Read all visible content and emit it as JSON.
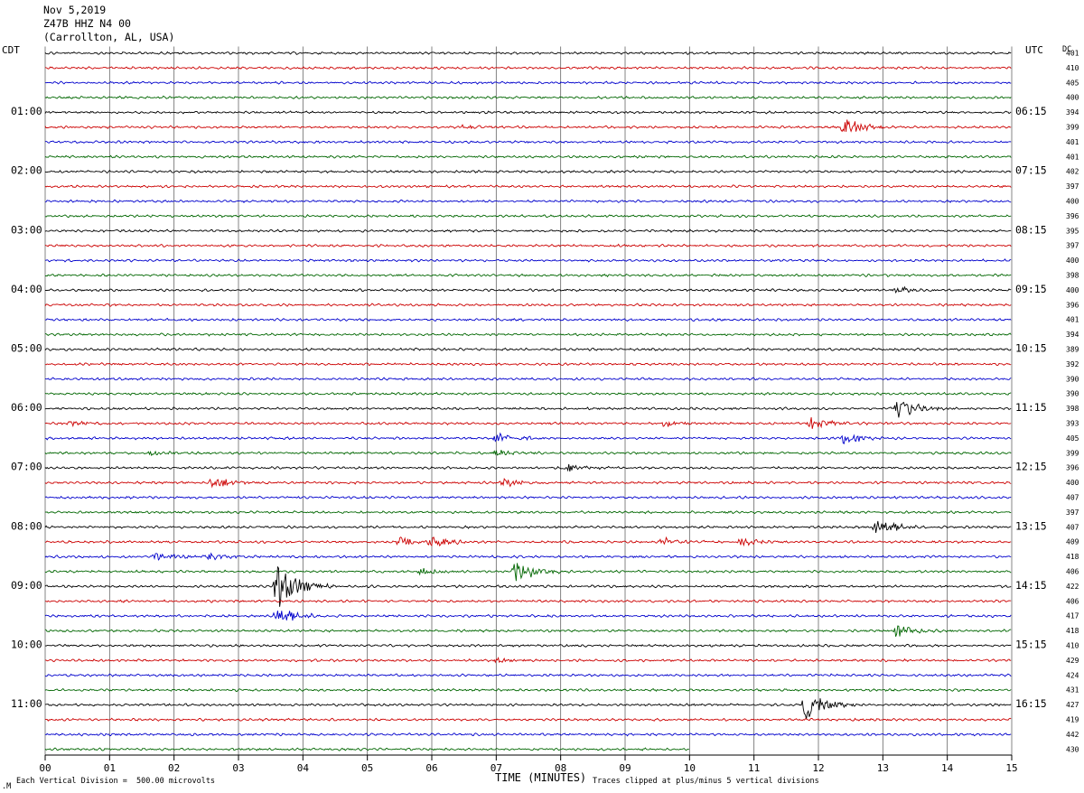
{
  "header": {
    "date": "Nov 5,2019",
    "station": "Z47B HHZ N4 00",
    "location": "(Carrollton, AL, USA)"
  },
  "left_zone": "CDT",
  "right_zone": "UTC",
  "dc_label": "DC",
  "footer": {
    "scale_note": "Each Vertical Division =  500.00 microvolts",
    "xlabel": "TIME (MINUTES)",
    "clip_note": "Traces clipped at plus/minus 5 vertical divisions",
    "corner_mark": ".M"
  },
  "colors": {
    "cycle": [
      "#000000",
      "#cc0000",
      "#0000cc",
      "#006600"
    ],
    "grid": "#666666"
  },
  "chart_data": {
    "type": "line",
    "subtype": "helicorder",
    "x_ticks": [
      "00",
      "01",
      "02",
      "03",
      "04",
      "05",
      "06",
      "07",
      "08",
      "09",
      "10",
      "11",
      "12",
      "13",
      "14",
      "15"
    ],
    "xlim": [
      0,
      15
    ],
    "left_hour_labels": [
      {
        "row": 4,
        "text": "01:00"
      },
      {
        "row": 8,
        "text": "02:00"
      },
      {
        "row": 12,
        "text": "03:00"
      },
      {
        "row": 16,
        "text": "04:00"
      },
      {
        "row": 20,
        "text": "05:00"
      },
      {
        "row": 24,
        "text": "06:00"
      },
      {
        "row": 28,
        "text": "07:00"
      },
      {
        "row": 32,
        "text": "08:00"
      },
      {
        "row": 36,
        "text": "09:00"
      },
      {
        "row": 40,
        "text": "10:00"
      },
      {
        "row": 44,
        "text": "11:00"
      }
    ],
    "right_hour_labels": [
      {
        "row": 4,
        "text": "06:15"
      },
      {
        "row": 8,
        "text": "07:15"
      },
      {
        "row": 12,
        "text": "08:15"
      },
      {
        "row": 16,
        "text": "09:15"
      },
      {
        "row": 20,
        "text": "10:15"
      },
      {
        "row": 24,
        "text": "11:15"
      },
      {
        "row": 28,
        "text": "12:15"
      },
      {
        "row": 32,
        "text": "13:15"
      },
      {
        "row": 36,
        "text": "14:15"
      },
      {
        "row": 40,
        "text": "15:15"
      },
      {
        "row": 44,
        "text": "16:15"
      }
    ],
    "dc_offsets": [
      "401",
      "410",
      "405",
      "400",
      "394",
      "399",
      "401",
      "401",
      "402",
      "397",
      "400",
      "396",
      "395",
      "397",
      "400",
      "398",
      "400",
      "396",
      "401",
      "394",
      "389",
      "392",
      "390",
      "390",
      "398",
      "393",
      "405",
      "399",
      "396",
      "400",
      "407",
      "397",
      "407",
      "409",
      "418",
      "406",
      "422",
      "406",
      "417",
      "418",
      "410",
      "429",
      "424",
      "431",
      "427",
      "419",
      "442",
      "430"
    ],
    "trace_end_minutes": [
      15,
      15,
      15,
      15,
      15,
      15,
      15,
      15,
      15,
      15,
      15,
      15,
      15,
      15,
      15,
      15,
      15,
      15,
      15,
      15,
      15,
      15,
      15,
      15,
      15,
      15,
      15,
      15,
      15,
      15,
      15,
      15,
      15,
      15,
      15,
      15,
      15,
      15,
      15,
      15,
      15,
      15,
      15,
      15,
      15,
      15,
      15,
      10
    ],
    "events": [
      {
        "row": 5,
        "minute": 12.4,
        "amp": 10
      },
      {
        "row": 5,
        "minute": 6.5,
        "amp": 3
      },
      {
        "row": 16,
        "minute": 13.2,
        "amp": 4
      },
      {
        "row": 24,
        "minute": 13.2,
        "amp": 14
      },
      {
        "row": 25,
        "minute": 11.9,
        "amp": 8
      },
      {
        "row": 25,
        "minute": 9.6,
        "amp": 4
      },
      {
        "row": 25,
        "minute": 0.4,
        "amp": 3
      },
      {
        "row": 26,
        "minute": 7.0,
        "amp": 6
      },
      {
        "row": 26,
        "minute": 12.4,
        "amp": 7
      },
      {
        "row": 27,
        "minute": 1.6,
        "amp": 3
      },
      {
        "row": 27,
        "minute": 7.0,
        "amp": 4
      },
      {
        "row": 28,
        "minute": 8.1,
        "amp": 5
      },
      {
        "row": 29,
        "minute": 2.6,
        "amp": 7
      },
      {
        "row": 29,
        "minute": 7.1,
        "amp": 5
      },
      {
        "row": 32,
        "minute": 12.9,
        "amp": 10
      },
      {
        "row": 33,
        "minute": 5.5,
        "amp": 5
      },
      {
        "row": 33,
        "minute": 6.0,
        "amp": 6
      },
      {
        "row": 33,
        "minute": 9.6,
        "amp": 6
      },
      {
        "row": 33,
        "minute": 10.8,
        "amp": 5
      },
      {
        "row": 34,
        "minute": 1.7,
        "amp": 5
      },
      {
        "row": 34,
        "minute": 2.5,
        "amp": 5
      },
      {
        "row": 35,
        "minute": 7.3,
        "amp": 12
      },
      {
        "row": 35,
        "minute": 5.8,
        "amp": 4
      },
      {
        "row": 36,
        "minute": 3.6,
        "amp": 26
      },
      {
        "row": 38,
        "minute": 3.6,
        "amp": 10
      },
      {
        "row": 39,
        "minute": 13.2,
        "amp": 9
      },
      {
        "row": 41,
        "minute": 7.0,
        "amp": 3
      },
      {
        "row": 44,
        "minute": 11.8,
        "amp": 16
      }
    ]
  }
}
